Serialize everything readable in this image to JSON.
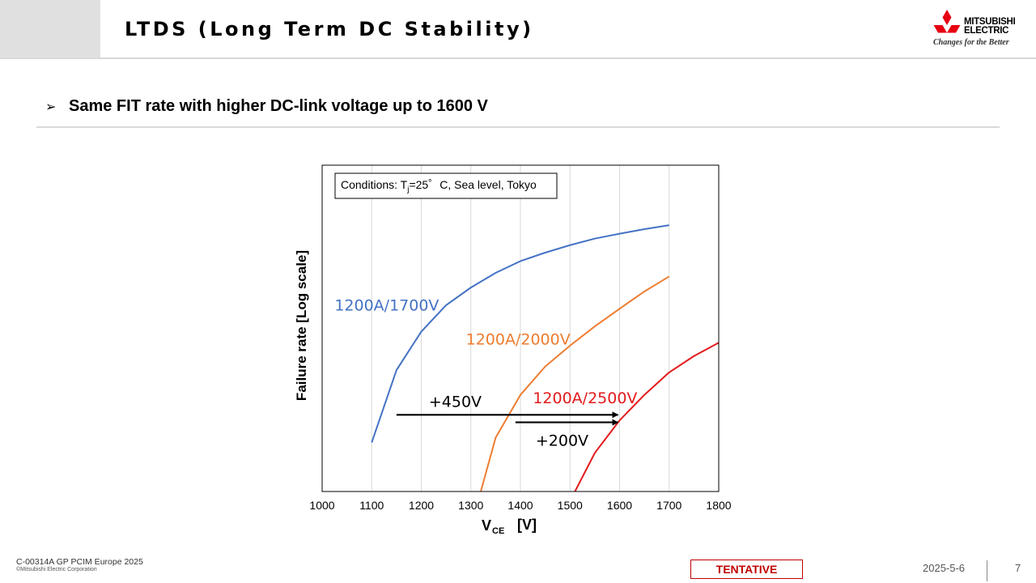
{
  "slide": {
    "title": "LTDS (Long Term DC Stability)",
    "bullet": "Same FIT rate with higher DC-link voltage up to 1600 V",
    "logo": {
      "name_line1": "MITSUBISHI",
      "name_line2": "ELECTRIC",
      "tagline": "Changes for the Better"
    },
    "footer": {
      "doc_id": "C-00314A GP PCIM Europe 2025",
      "copyright": "©Mitsubishi Electric Corporation",
      "stamp": "TENTATIVE",
      "date": "2025-5-6",
      "page": "7"
    },
    "colors": {
      "brand_red": "#e60012",
      "stamp_red": "#c00000",
      "title_block": "#e0e0e0"
    }
  },
  "chart_data": {
    "type": "line",
    "conditions": {
      "prefix": "Conditions: T",
      "sub": "j",
      "suffix": "=25゜C, Sea level, Tokyo"
    },
    "xlabel": {
      "main": "V",
      "sub": "CE",
      "unit": "[V]"
    },
    "ylabel": "Failure rate [Log scale]",
    "xlim": [
      1000,
      1800
    ],
    "ylim": [
      0,
      1
    ],
    "y_scale": "log (unlabeled)",
    "xticks": [
      "1000",
      "1100",
      "1200",
      "1300",
      "1400",
      "1500",
      "1600",
      "1700",
      "1800"
    ],
    "grid": "vertical",
    "series": [
      {
        "name": "1200A/1700V",
        "color": "#4472c4",
        "x": [
          1100,
          1150,
          1200,
          1250,
          1300,
          1350,
          1400,
          1450,
          1500,
          1550,
          1600,
          1650,
          1700
        ],
        "y": [
          0.15,
          0.372,
          0.49,
          0.571,
          0.625,
          0.67,
          0.706,
          0.732,
          0.755,
          0.775,
          0.79,
          0.804,
          0.816
        ]
      },
      {
        "name": "1200A/2000V",
        "color": "#ed7d31",
        "x": [
          1320,
          1350,
          1400,
          1450,
          1500,
          1550,
          1600,
          1650,
          1700
        ],
        "y": [
          0.0,
          0.165,
          0.296,
          0.383,
          0.447,
          0.506,
          0.56,
          0.613,
          0.659
        ]
      },
      {
        "name": "1200A/2500V",
        "color": "#e31a1c",
        "x": [
          1510,
          1550,
          1600,
          1650,
          1700,
          1750,
          1800
        ],
        "y": [
          0.0,
          0.118,
          0.218,
          0.296,
          0.365,
          0.415,
          0.456
        ]
      }
    ],
    "annotations": [
      {
        "text": "+450V",
        "from_x": 1150,
        "to_x": 1600,
        "y": 0.235
      },
      {
        "text": "+200V",
        "from_x": 1390,
        "to_x": 1600,
        "y": 0.212
      }
    ]
  }
}
